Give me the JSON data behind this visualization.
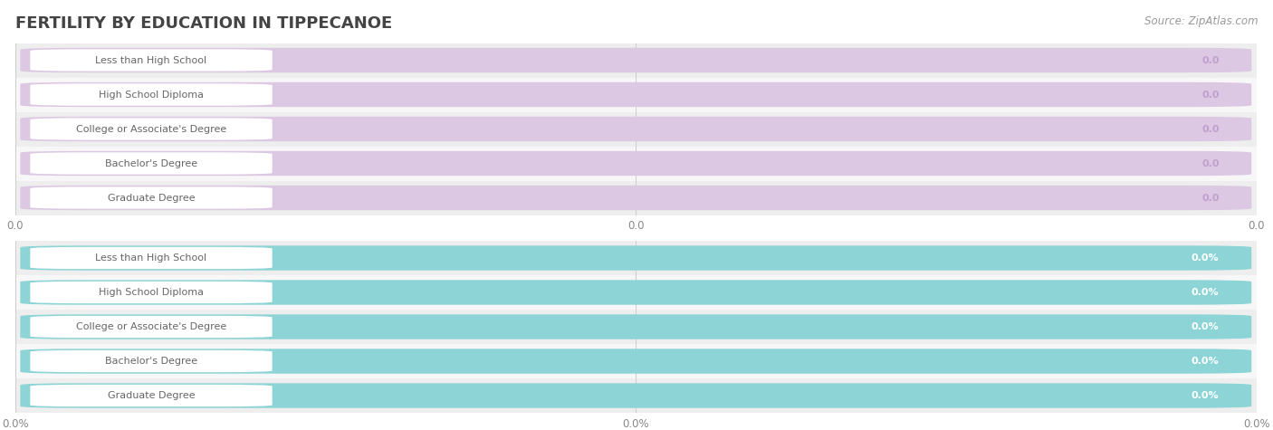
{
  "title": "FERTILITY BY EDUCATION IN TIPPECANOE",
  "source": "Source: ZipAtlas.com",
  "categories": [
    "Less than High School",
    "High School Diploma",
    "College or Associate's Degree",
    "Bachelor's Degree",
    "Graduate Degree"
  ],
  "values_top": [
    0.0,
    0.0,
    0.0,
    0.0,
    0.0
  ],
  "values_bottom": [
    0.0,
    0.0,
    0.0,
    0.0,
    0.0
  ],
  "bar_color_top": "#c9a8d4",
  "bar_bg_color_top": "#ddc8e4",
  "bar_color_bottom": "#5bbcbf",
  "bar_bg_color_bottom": "#8dd4d6",
  "row_bg_even": "#eeeeee",
  "row_bg_odd": "#f7f7f7",
  "label_bg_color": "#ffffff",
  "label_text_color": "#666666",
  "value_text_color_top": "#c0a0cc",
  "value_text_color_bottom": "#ffffff",
  "title_color": "#444444",
  "source_color": "#999999",
  "xtick_labels_top": [
    "0.0",
    "0.0",
    "0.0"
  ],
  "xtick_labels_bottom": [
    "0.0%",
    "0.0%",
    "0.0%"
  ],
  "fig_bg_color": "#ffffff"
}
